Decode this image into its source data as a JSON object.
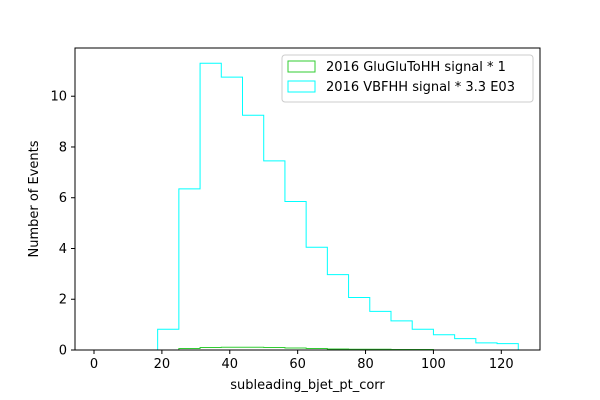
{
  "chart_data": {
    "type": "histogram",
    "title": "",
    "xlabel": "subleading_bjet_pt_corr",
    "ylabel": "Number of Events",
    "xlim": [
      -5.6,
      131.4
    ],
    "ylim": [
      0,
      11.9
    ],
    "xticks": [
      0,
      20,
      40,
      60,
      80,
      100,
      120
    ],
    "yticks": [
      0,
      2,
      4,
      6,
      8,
      10
    ],
    "grid": false,
    "legend_position": "top-right",
    "bin_edges": [
      0,
      6.25,
      12.5,
      18.75,
      25,
      31.25,
      37.5,
      43.75,
      50,
      56.25,
      62.5,
      68.75,
      75,
      81.25,
      87.5,
      93.75,
      100,
      106.25,
      112.5,
      118.75,
      125
    ],
    "series": [
      {
        "name": "2016 GluGluToHH signal * 1",
        "color": "#32cd32",
        "bin_edges": [
          0,
          6.25,
          12.5,
          18.75,
          25,
          31.25,
          37.5,
          43.75,
          50,
          56.25,
          62.5,
          68.75,
          75,
          81.25,
          87.5,
          93.75,
          100
        ],
        "values": [
          0,
          0,
          0,
          0,
          0.06,
          0.1,
          0.11,
          0.11,
          0.1,
          0.08,
          0.06,
          0.04,
          0.03,
          0.03,
          0.02,
          0.02
        ]
      },
      {
        "name": "2016 VBFHH signal * 3.3 E03",
        "color": "#00ffff",
        "bin_edges": [
          0,
          6.25,
          12.5,
          18.75,
          25,
          31.25,
          37.5,
          43.75,
          50,
          56.25,
          62.5,
          68.75,
          75,
          81.25,
          87.5,
          93.75,
          100,
          106.25,
          112.5,
          118.75,
          125
        ],
        "values": [
          0,
          0,
          0,
          0.82,
          6.35,
          11.3,
          10.75,
          9.25,
          7.45,
          5.85,
          4.05,
          2.97,
          2.07,
          1.52,
          1.15,
          0.82,
          0.6,
          0.45,
          0.28,
          0.25
        ]
      }
    ]
  }
}
